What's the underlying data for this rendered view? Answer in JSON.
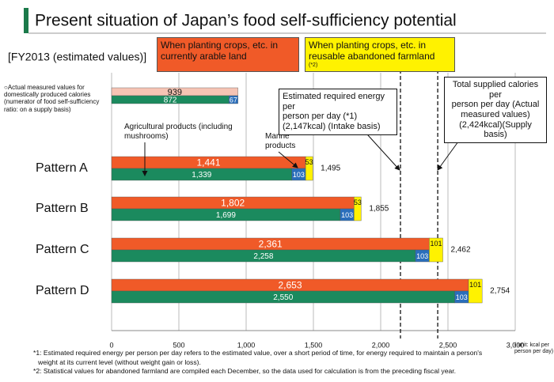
{
  "chart_data": {
    "type": "bar",
    "title": "Present situation of Japan’s food self-sufficiency potential",
    "subtitle": "[FY2013 (estimated values)]",
    "categories": [
      null,
      "Pattern A",
      "Pattern B",
      "Pattern C",
      "Pattern D"
    ],
    "series": [
      {
        "name": "○Actual measured values for domestically produced calories (numerator of food self-sufficiency ratio: on a supply basis)",
        "color": "#f6c4b4",
        "label_color": "#111111",
        "lane": "top",
        "values": [
          939,
          null,
          null,
          null,
          null
        ]
      },
      {
        "name": "When planting crops, etc. in currently arable land",
        "color": "#f05a28",
        "label_color": "#ffffff",
        "lane": "top",
        "values": [
          null,
          1441,
          1802,
          2361,
          2653
        ],
        "value_labels": [
          null,
          "1,441",
          "1,802",
          "2,361",
          "2,653"
        ]
      },
      {
        "name": "Agricultural products (including mushrooms)",
        "color": "#1b8a5e",
        "label_color": "#ffffff",
        "lane": "bottom",
        "values": [
          872,
          1339,
          1699,
          2258,
          2550
        ],
        "value_labels": [
          "872",
          "1,339",
          "1,699",
          "2,258",
          "2,550"
        ]
      },
      {
        "name": "Marine products",
        "color": "#2a6ebb",
        "label_color": "#ffffff",
        "lane": "bottom",
        "values": [
          67,
          103,
          103,
          103,
          103
        ]
      },
      {
        "name": "When planting crops, etc. in reusable abandoned farmland",
        "color": "#fff200",
        "label_color": "#111111",
        "lane": "both",
        "values": [
          null,
          53,
          53,
          101,
          101
        ]
      }
    ],
    "legend_note": "(*2)",
    "totals": {
      "values": [
        null,
        1495,
        1855,
        2462,
        2754
      ],
      "value_labels": [
        null,
        "1,495",
        "1,855",
        "2,462",
        "2,754"
      ]
    },
    "reference_lines": [
      {
        "value": 2147,
        "label": [
          "Estimated required energy per",
          "person per day (*1)",
          "(2,147kcal) (Intake basis)"
        ]
      },
      {
        "value": 2424,
        "label": [
          "Total supplied calories per",
          "person per day (Actual",
          "measured values)",
          "(2,424kcal)(Supply basis)"
        ]
      }
    ],
    "xlim": [
      0,
      3000
    ],
    "xticks": [
      0,
      500,
      {
        "value": 1000,
        "label": "1,000"
      },
      {
        "value": 1500,
        "label": "1,500"
      },
      {
        "value": 2000,
        "label": "2,000"
      },
      {
        "value": 2500,
        "label": "2,500"
      },
      {
        "value": 3000,
        "label": "3,000"
      }
    ],
    "grid": true,
    "unit": [
      "( unit: kcal per",
      "person per day)"
    ],
    "footnotes": [
      "*1: Estimated required energy per person per day refers to the estimated value, over a short period of time, for energy required to maintain a person's",
      "weight at its current level (without weight gain or loss).",
      "*2: Statistical values for abandoned farmland are compiled each December, so the data used for calculation is from the preceding fiscal year."
    ]
  }
}
